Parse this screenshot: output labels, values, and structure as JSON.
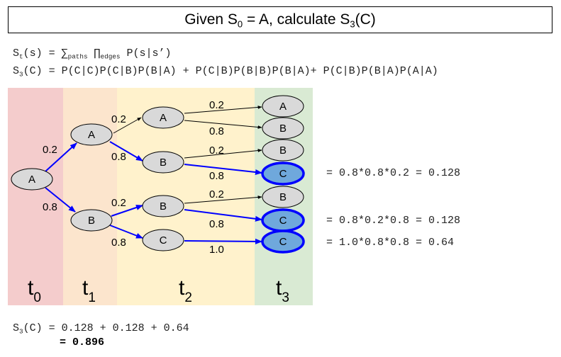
{
  "title": {
    "prefix": "Given S",
    "sub": "0",
    "middle": " = A, calculate S",
    "sub2": "3",
    "suffix": "(C)"
  },
  "formula1": {
    "s": "S",
    "t": "t",
    "rest1": "(s) = ∑",
    "paths": "paths",
    "prod": " ∏",
    "edges": "edges",
    "rest2": " P(s|s’)"
  },
  "formula2": {
    "s": "S",
    "sub": "3",
    "rest": "(C) = P(C|C)P(C|B)P(B|A) + P(C|B)P(B|B)P(B|A)+ P(C|B)P(B|A)P(A|A)"
  },
  "timesteps": [
    {
      "t": "t",
      "sub": "0"
    },
    {
      "t": "t",
      "sub": "1"
    },
    {
      "t": "t",
      "sub": "2"
    },
    {
      "t": "t",
      "sub": "3"
    }
  ],
  "nodes": {
    "t0_A": "A",
    "t1_A": "A",
    "t1_B": "B",
    "t2_A": "A",
    "t2_B_top": "B",
    "t2_B_bottom": "B",
    "t2_C": "C",
    "t3_A": "A",
    "t3_B_1": "B",
    "t3_B_2": "B",
    "t3_C_1": "C",
    "t3_B_3": "B",
    "t3_C_2": "C",
    "t3_C_3": "C"
  },
  "edge_labels": {
    "t0A_t1A": "0.2",
    "t0A_t1B": "0.8",
    "t1A_t2A": "0.2",
    "t1A_t2B": "0.8",
    "t1B_t2B": "0.2",
    "t1B_t2C": "0.8",
    "t2A_t3A": "0.2",
    "t2A_t3B": "0.8",
    "t2B_t3B": "0.2",
    "t2B_t3C": "0.8",
    "t2Bb_t3B": "0.2",
    "t2Bb_t3C": "0.8",
    "t2C_t3C": "1.0"
  },
  "results": [
    "= 0.8*0.8*0.2 = 0.128",
    "= 0.8*0.2*0.8 = 0.128",
    "= 1.0*0.8*0.8 = 0.64"
  ],
  "total": {
    "s": "S",
    "sub": "3",
    "line1_rest": "(C) = 0.128 + 0.128 + 0.64",
    "line2": "= 0.896"
  },
  "colors": {
    "band_t0": "#f4cccc",
    "band_t1": "#fce5cd",
    "band_t2": "#fff2cc",
    "band_t3": "#d9ead3",
    "node_fill": "#d9d9d9",
    "highlight_fill": "#6fa8dc",
    "highlight_stroke": "#0000ff",
    "path_color": "#0000ff"
  }
}
